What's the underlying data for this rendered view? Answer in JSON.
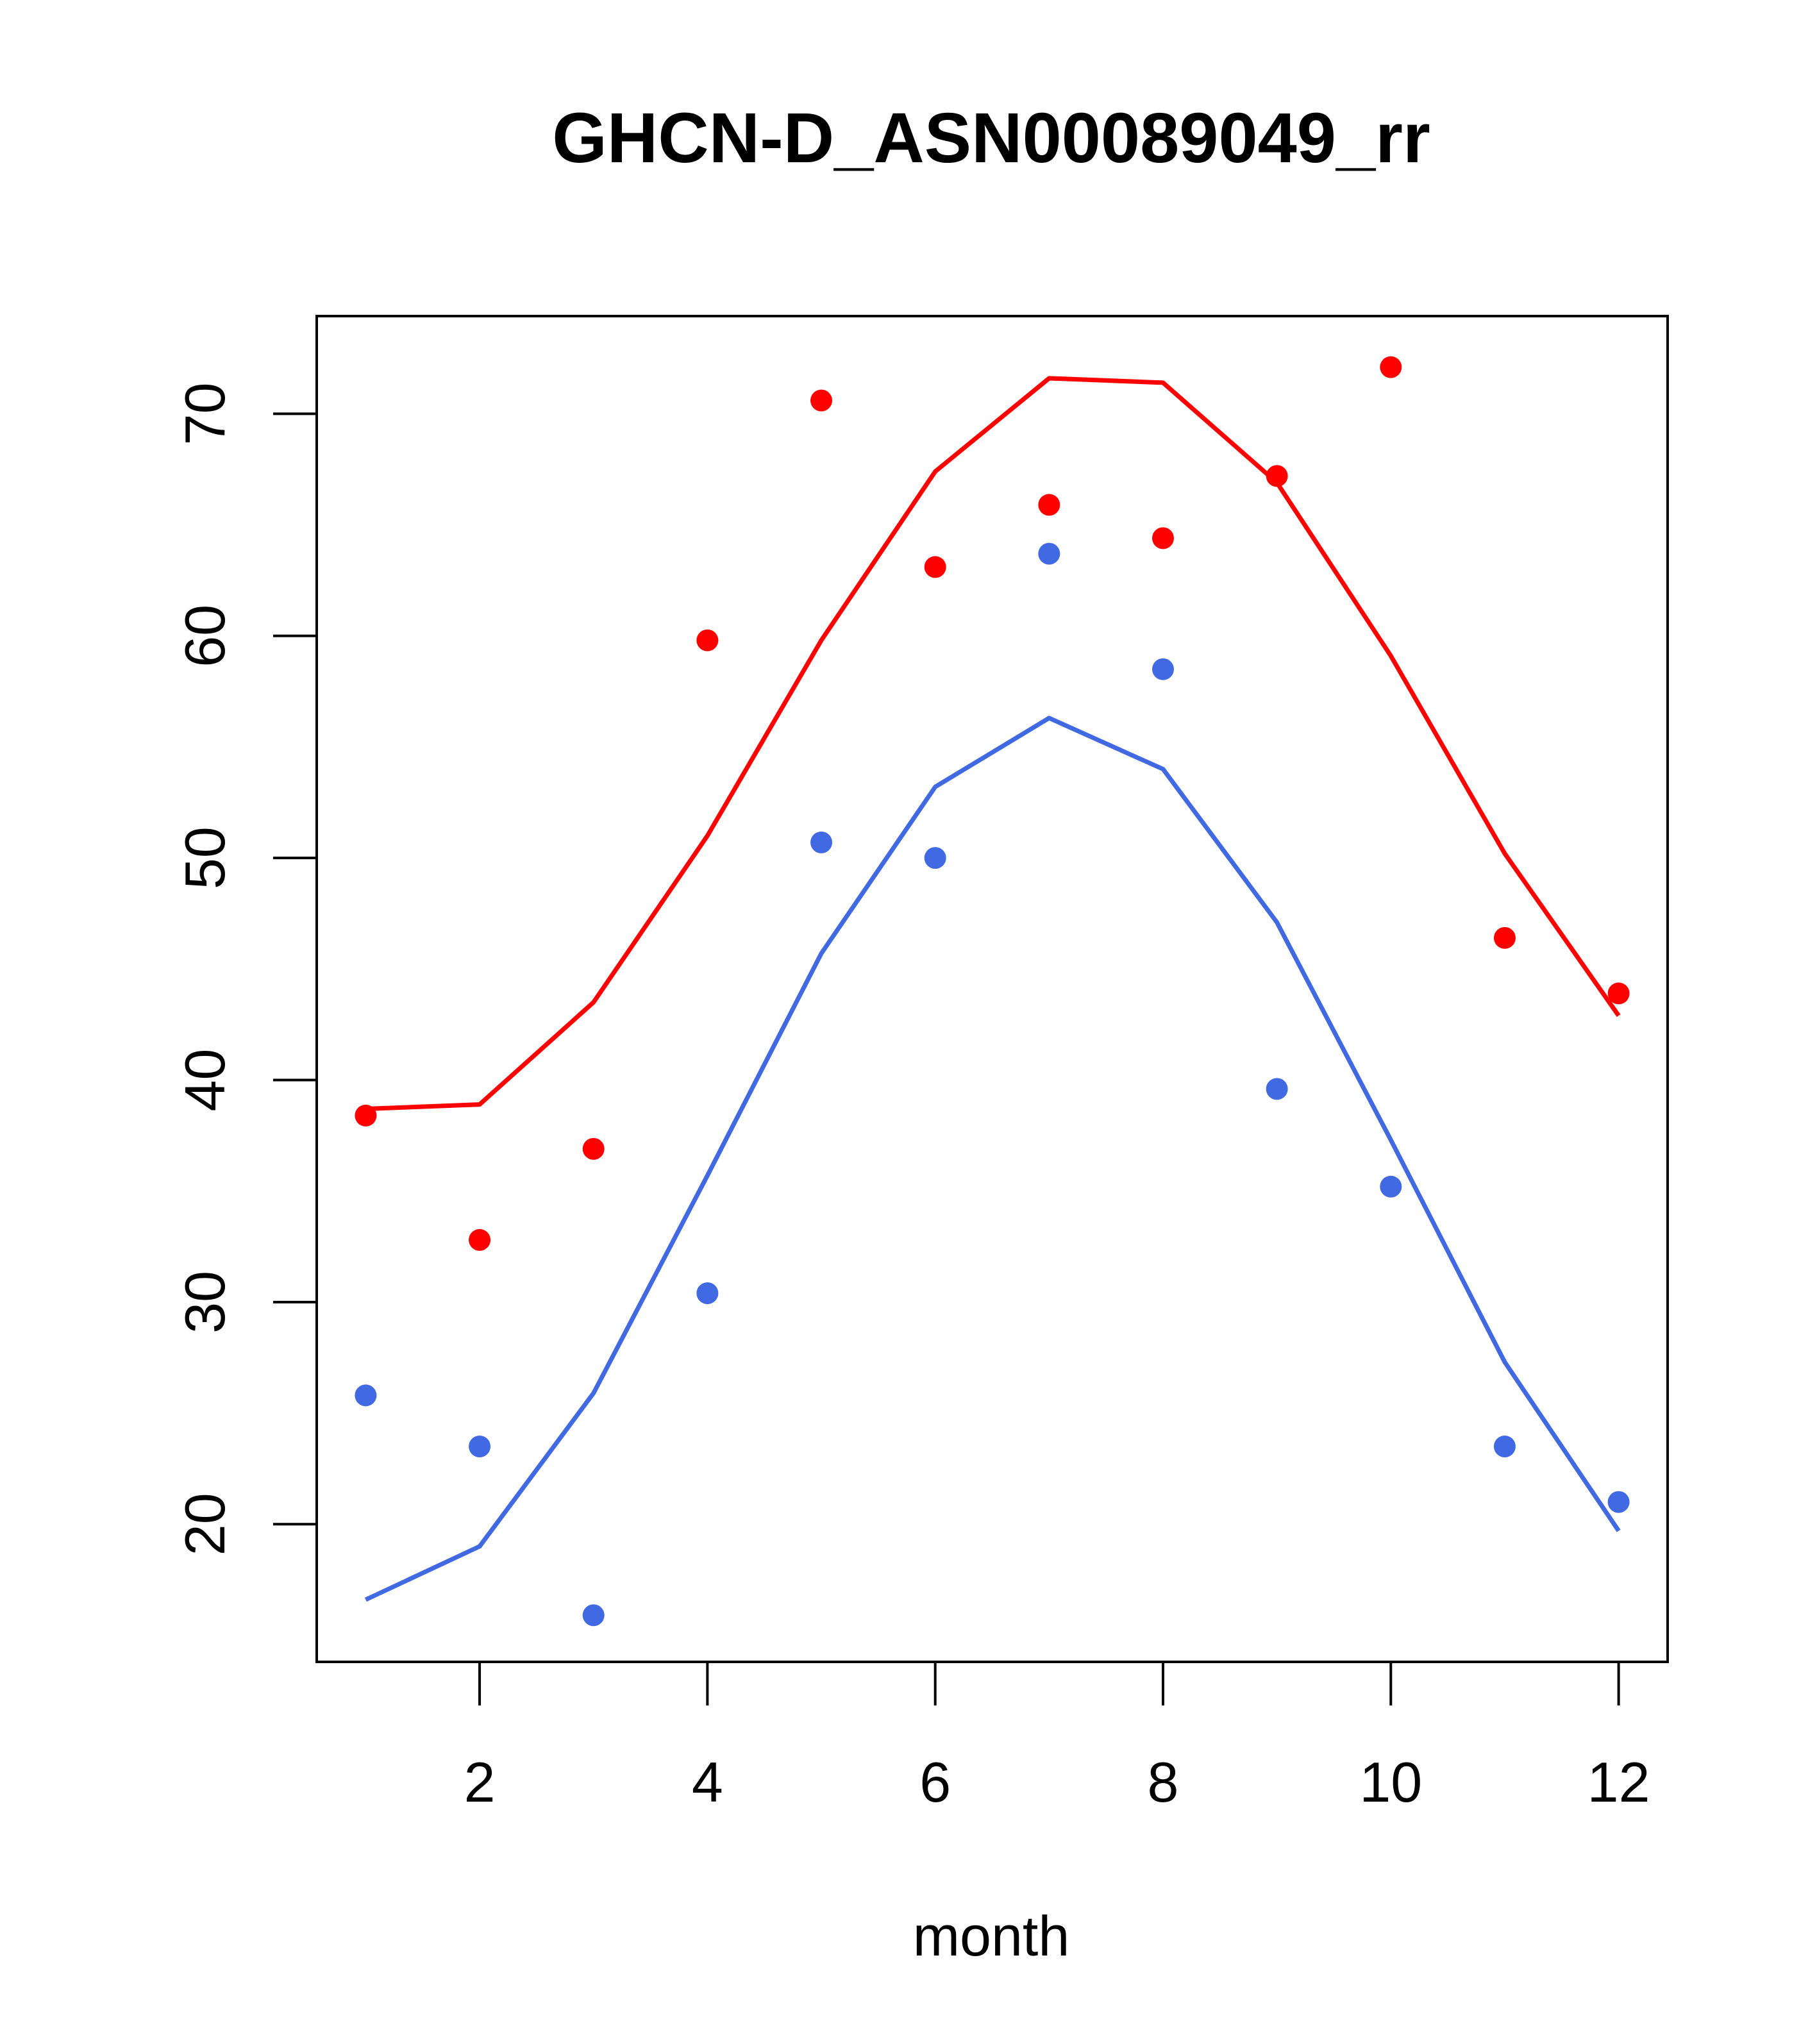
{
  "chart_data": {
    "type": "line",
    "title": "GHCN-D_ASN00089049_rr",
    "xlabel": "month",
    "ylabel": "",
    "xlim": [
      0.57,
      12.43
    ],
    "ylim": [
      13.8,
      74.4
    ],
    "xticks": [
      2,
      4,
      6,
      8,
      10,
      12
    ],
    "yticks": [
      20,
      30,
      40,
      50,
      60,
      70
    ],
    "x": [
      1,
      2,
      3,
      4,
      5,
      6,
      7,
      8,
      9,
      10,
      11,
      12
    ],
    "series": [
      {
        "color": "#ff0000",
        "line": [
          38.7,
          38.9,
          43.5,
          51.0,
          59.8,
          67.4,
          71.6,
          71.4,
          66.9,
          59.1,
          50.2,
          42.9
        ],
        "points": [
          38.4,
          32.8,
          36.9,
          59.8,
          70.6,
          63.1,
          65.9,
          64.4,
          67.2,
          72.1,
          46.4,
          43.9
        ]
      },
      {
        "color": "#4169e1",
        "line": [
          16.6,
          19.0,
          25.9,
          35.7,
          45.7,
          53.2,
          56.3,
          54.0,
          47.1,
          37.3,
          27.3,
          19.7
        ],
        "points": [
          25.8,
          23.5,
          15.9,
          30.4,
          50.7,
          50.0,
          63.7,
          58.5,
          39.6,
          35.2,
          23.5,
          21.0
        ]
      }
    ],
    "grid": false,
    "legend": "none"
  }
}
